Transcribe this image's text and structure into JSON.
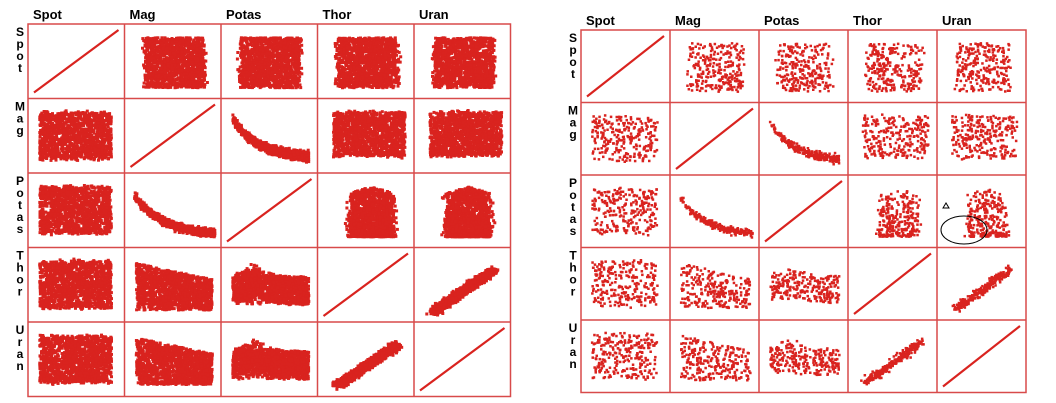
{
  "figure": {
    "variables": [
      "Spot",
      "Mag",
      "Potas",
      "Thor",
      "Uran"
    ],
    "point_color": "#d9231f",
    "grid_color": "#d84a4a",
    "annotation_color": "#000000"
  },
  "chart_data": [
    {
      "type": "scatter",
      "matrix": "scatterplot-matrix",
      "variables": [
        "Spot",
        "Mag",
        "Potas",
        "Thor",
        "Uran"
      ],
      "column_labels": [
        "Spot",
        "Mag",
        "Potas",
        "Thor",
        "Uran"
      ],
      "row_labels": [
        "Spot",
        "Mag",
        "Potas",
        "Thor",
        "Uran"
      ],
      "diagonal": "identity line",
      "rendering": "dense, heavily overplotted",
      "axis_range": [
        0,
        1
      ],
      "grid": true
    },
    {
      "type": "scatter",
      "matrix": "scatterplot-matrix",
      "variables": [
        "Spot",
        "Mag",
        "Potas",
        "Thor",
        "Uran"
      ],
      "column_labels": [
        "Spot",
        "Mag",
        "Potas",
        "Thor",
        "Uran"
      ],
      "row_labels": [
        "Spot",
        "Mag",
        "Potas",
        "Thor",
        "Uran"
      ],
      "diagonal": "identity line",
      "rendering": "sparse sample",
      "axis_range": [
        0,
        1
      ],
      "grid": true,
      "annotations": [
        {
          "row": "Potas",
          "column": "Uran",
          "shape": "ellipse",
          "marker": "triangle"
        }
      ]
    }
  ]
}
